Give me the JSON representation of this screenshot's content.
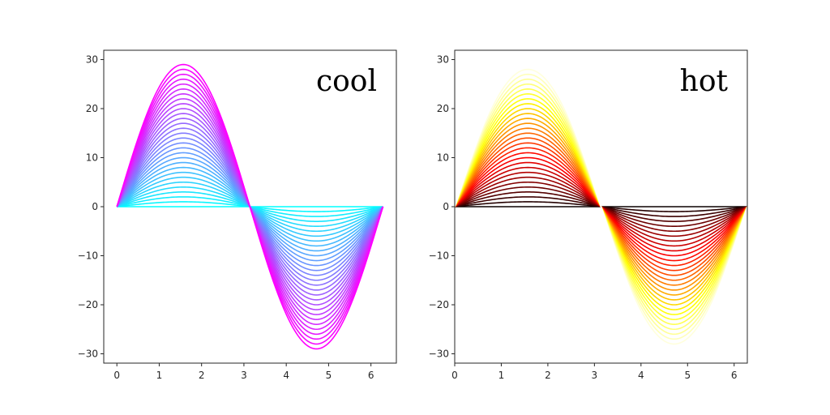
{
  "chart_data": [
    {
      "type": "line",
      "label": "cool",
      "colormap": "cool",
      "color_start": "#00ffff",
      "color_end": "#ff00ff",
      "function": "y = a * sin(x)",
      "x_range": [
        0,
        6.2832
      ],
      "amplitudes": [
        0,
        1,
        2,
        3,
        4,
        5,
        6,
        7,
        8,
        9,
        10,
        11,
        12,
        13,
        14,
        15,
        16,
        17,
        18,
        19,
        20,
        21,
        22,
        23,
        24,
        25,
        26,
        27,
        28,
        29
      ],
      "xlim": [
        -0.31,
        6.6
      ],
      "ylim": [
        -31.9,
        31.9
      ],
      "xticks": [
        0,
        1,
        2,
        3,
        4,
        5,
        6
      ],
      "yticks": [
        -30,
        -20,
        -10,
        0,
        10,
        20,
        30
      ],
      "grid": false
    },
    {
      "type": "line",
      "label": "hot",
      "colormap": "hot",
      "color_stops": [
        "#0b0000",
        "#ff0000",
        "#ffff00",
        "#ffffff"
      ],
      "function": "y = a * sin(x)",
      "x_range": [
        0,
        6.2832
      ],
      "amplitudes": [
        0,
        1,
        2,
        3,
        4,
        5,
        6,
        7,
        8,
        9,
        10,
        11,
        12,
        13,
        14,
        15,
        16,
        17,
        18,
        19,
        20,
        21,
        22,
        23,
        24,
        25,
        26,
        27,
        28,
        29
      ],
      "xlim": [
        0,
        6.2832
      ],
      "ylim": [
        -31.9,
        31.9
      ],
      "xticks": [
        0,
        1,
        2,
        3,
        4,
        5,
        6
      ],
      "yticks": [
        -30,
        -20,
        -10,
        0,
        10,
        20,
        30
      ],
      "grid": false
    }
  ]
}
